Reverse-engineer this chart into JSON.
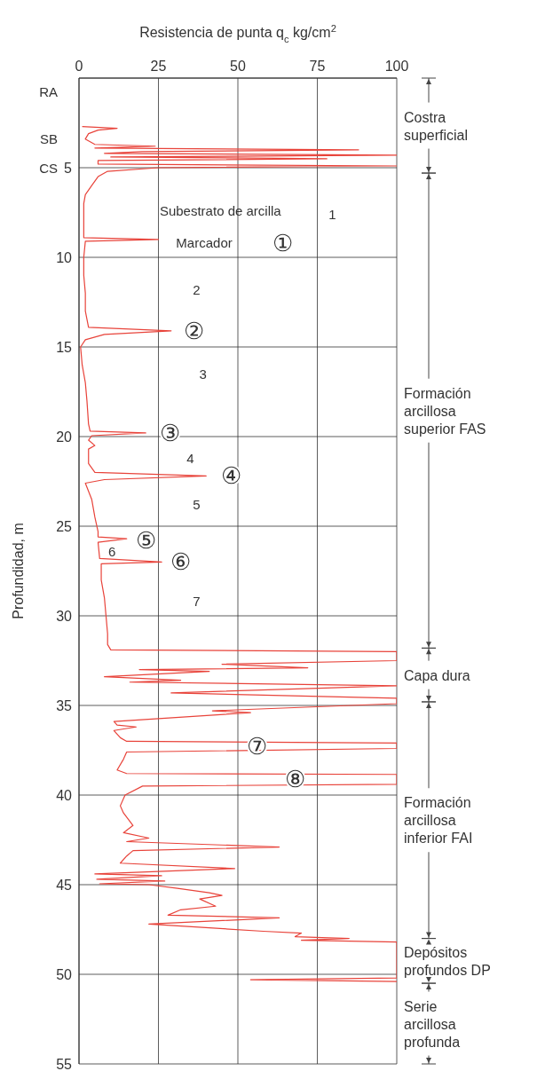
{
  "chart_data": {
    "type": "line",
    "xlabel": "Resistencia de punta q$_{c}$ kg/cm$^{2}$",
    "ylabel": "Profundidad, m",
    "xlim": [
      0,
      100
    ],
    "xticks": [
      0,
      25,
      50,
      75,
      100
    ],
    "ylim": [
      55,
      0
    ],
    "yticks": [
      5,
      10,
      15,
      20,
      25,
      30,
      35,
      40,
      45,
      50,
      55
    ],
    "grid": true,
    "marker": "none",
    "series": [
      {
        "color": "#e8433a",
        "x": [
          1,
          12,
          6,
          3,
          2,
          5,
          24,
          5,
          88,
          20,
          8,
          100,
          10,
          78,
          6,
          6,
          100,
          25,
          9,
          6,
          4,
          2,
          1.5,
          1.5,
          1.5,
          25,
          2,
          1.5,
          1.5,
          2,
          2,
          3,
          29,
          8,
          2,
          0.5,
          1,
          2,
          2.5,
          3,
          3.5,
          21,
          4,
          3,
          5,
          3,
          3,
          5,
          40,
          8,
          2,
          4,
          5,
          6,
          6,
          15,
          6,
          6.5,
          26,
          7,
          7,
          8,
          8.5,
          9,
          9,
          10,
          100,
          100,
          45,
          72,
          19,
          41,
          8,
          32,
          16,
          100,
          29,
          100,
          100,
          42,
          54,
          11,
          12,
          18,
          11,
          13,
          15,
          100,
          100,
          15,
          14,
          12,
          15,
          100,
          100,
          20,
          14.5,
          13,
          14,
          17,
          14,
          22,
          15,
          63,
          17,
          15,
          13,
          49,
          5,
          26,
          5.6,
          27,
          6.5,
          22,
          31,
          41,
          45,
          38,
          43,
          32,
          28,
          63,
          22,
          58,
          70,
          68,
          85,
          70,
          100,
          100,
          54,
          100
        ],
        "values": [
          2.7,
          2.8,
          2.9,
          3.1,
          3.4,
          3.7,
          3.8,
          3.9,
          4.0,
          4.1,
          4.2,
          4.3,
          4.4,
          4.5,
          4.6,
          4.8,
          4.9,
          5.0,
          5.2,
          5.5,
          6.0,
          6.5,
          7.0,
          8.0,
          8.9,
          9.0,
          9.1,
          10,
          11,
          12,
          13,
          13.9,
          14.1,
          14.3,
          14.6,
          15,
          16,
          17,
          18,
          19.3,
          19.7,
          19.8,
          19.95,
          20.2,
          20.5,
          20.7,
          21.5,
          22.0,
          22.2,
          22.4,
          22.6,
          23.5,
          24.5,
          25.3,
          25.6,
          25.7,
          25.9,
          26.8,
          27.0,
          27.1,
          28.0,
          29.0,
          30.0,
          31.0,
          31.6,
          31.9,
          32.0,
          32.5,
          32.7,
          32.9,
          33.0,
          33.1,
          33.4,
          33.6,
          33.7,
          33.9,
          34.3,
          34.6,
          34.9,
          35.3,
          35.4,
          35.9,
          36.1,
          36.2,
          36.4,
          36.8,
          37.0,
          37.1,
          37.4,
          37.6,
          38.0,
          38.6,
          38.8,
          38.85,
          39.4,
          39.5,
          40.0,
          40.6,
          41.0,
          41.7,
          42.1,
          42.4,
          42.6,
          42.9,
          43.1,
          43.4,
          43.8,
          44.1,
          44.4,
          44.5,
          44.7,
          44.8,
          44.95,
          45.0,
          45.2,
          45.45,
          45.6,
          45.8,
          46.2,
          46.4,
          46.7,
          46.85,
          47.2,
          47.6,
          47.7,
          47.9,
          48.0,
          48.1,
          48.2,
          50.2,
          50.3,
          50.4
        ]
      }
    ],
    "annotations": [
      "RA",
      "SB",
      "CS",
      "Subestrato de arcilla",
      "1",
      "Marcador",
      "①",
      "2",
      "②",
      "3",
      "③",
      "4",
      "④",
      "5",
      "⑤",
      "6",
      "⑥",
      "7",
      "⑦",
      "⑧",
      "Costra superficial",
      "Formación arcillosa superior FAS",
      "Capa dura",
      "Formación arcillosa inferior FAI",
      "Depósitos profundos DP",
      "Serie arcillosa profunda"
    ]
  }
}
